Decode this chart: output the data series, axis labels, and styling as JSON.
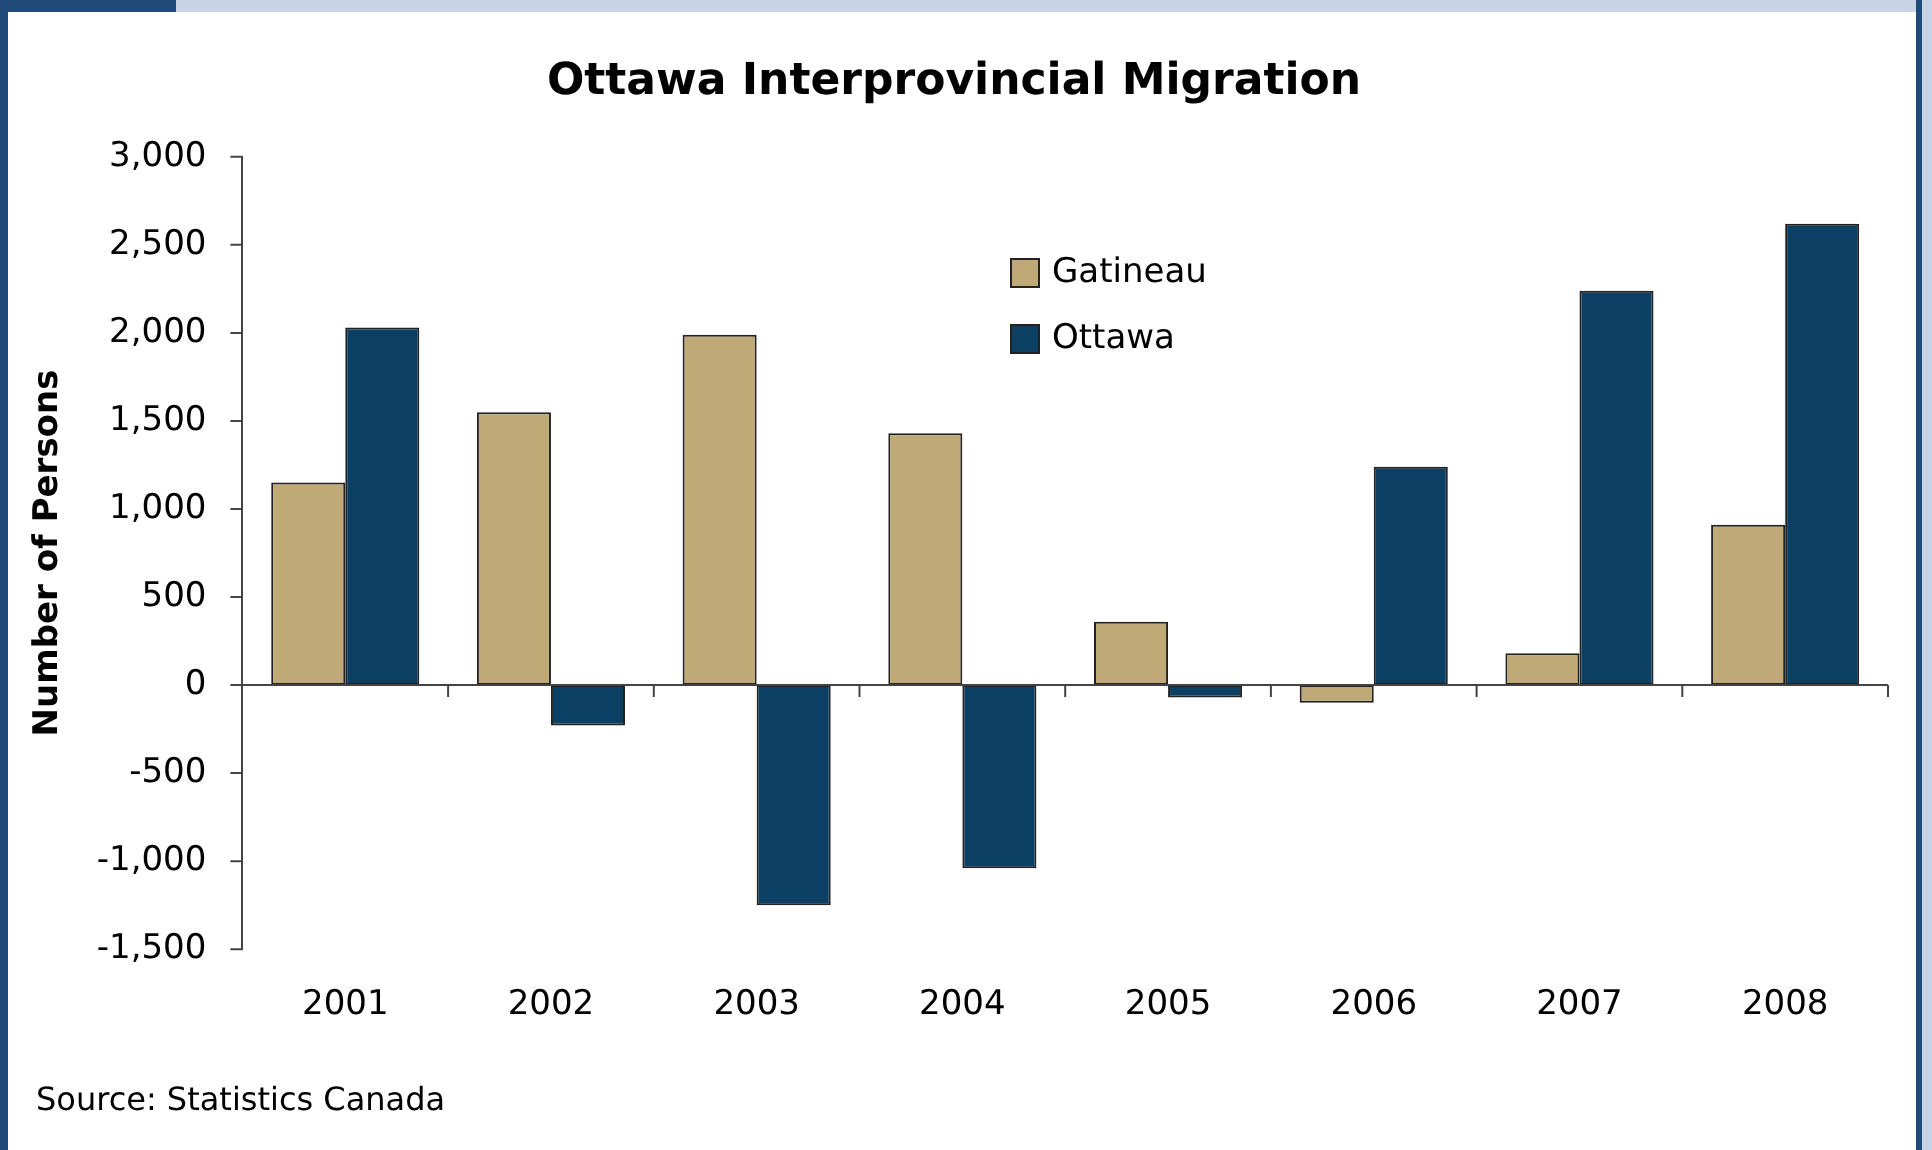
{
  "chart_data": {
    "type": "bar",
    "title": "Ottawa Interprovincial Migration",
    "ylabel": "Number of Persons",
    "categories": [
      "2001",
      "2002",
      "2003",
      "2004",
      "2005",
      "2006",
      "2007",
      "2008"
    ],
    "series": [
      {
        "name": "Gatineau",
        "color": "#bfaa77",
        "values": [
          1150,
          1550,
          1990,
          1430,
          360,
          -100,
          180,
          910
        ]
      },
      {
        "name": "Ottawa",
        "color": "#0b3f63",
        "values": [
          2030,
          -230,
          -1250,
          -1040,
          -70,
          1240,
          2240,
          2620
        ]
      }
    ],
    "ylim": [
      -1500,
      3000
    ],
    "yticks": [
      {
        "value": -1500,
        "label": "-1,500"
      },
      {
        "value": -1000,
        "label": "-1,000"
      },
      -500,
      0,
      500,
      {
        "value": 1000,
        "label": "1,000"
      },
      {
        "value": 1500,
        "label": "1,500"
      },
      {
        "value": 2000,
        "label": "2,000"
      },
      {
        "value": 2500,
        "label": "2,500"
      },
      {
        "value": 3000,
        "label": "3,000"
      }
    ],
    "legend": "top",
    "annotations": [
      "Source: Statistics Canada"
    ]
  }
}
